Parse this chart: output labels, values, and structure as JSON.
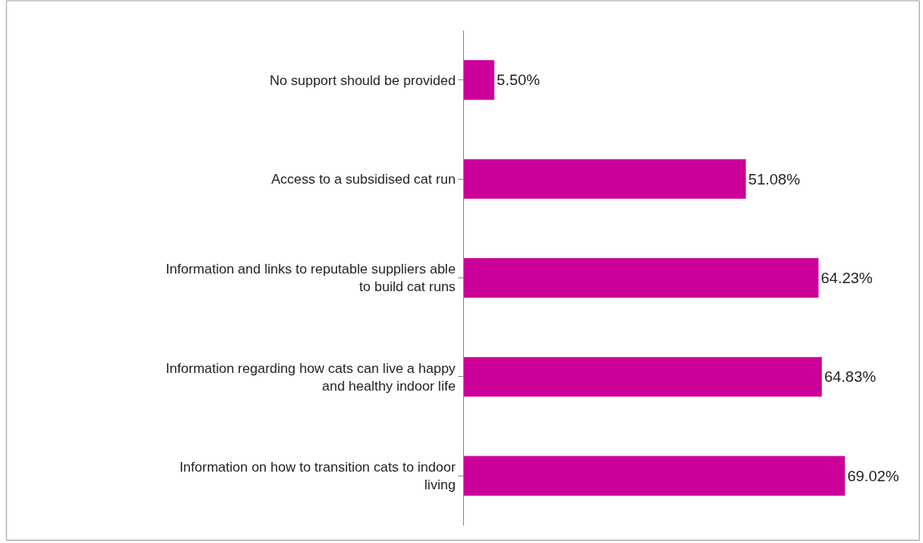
{
  "chart_data": {
    "type": "bar",
    "orientation": "horizontal",
    "categories": [
      "No support should be provided",
      "Access to a subsidised cat run",
      "Information and links to reputable suppliers able\nto build cat runs",
      "Information regarding how cats can live a happy\nand healthy indoor life",
      "Information on how to transition cats to indoor\nliving"
    ],
    "values": [
      5.5,
      51.08,
      64.23,
      64.83,
      69.02
    ],
    "value_labels": [
      "5.50%",
      "51.08%",
      "64.23%",
      "64.83%",
      "69.02%"
    ],
    "color": "#cc0099",
    "xlim": [
      0,
      82
    ],
    "tick_labels": "y",
    "legend": false
  }
}
